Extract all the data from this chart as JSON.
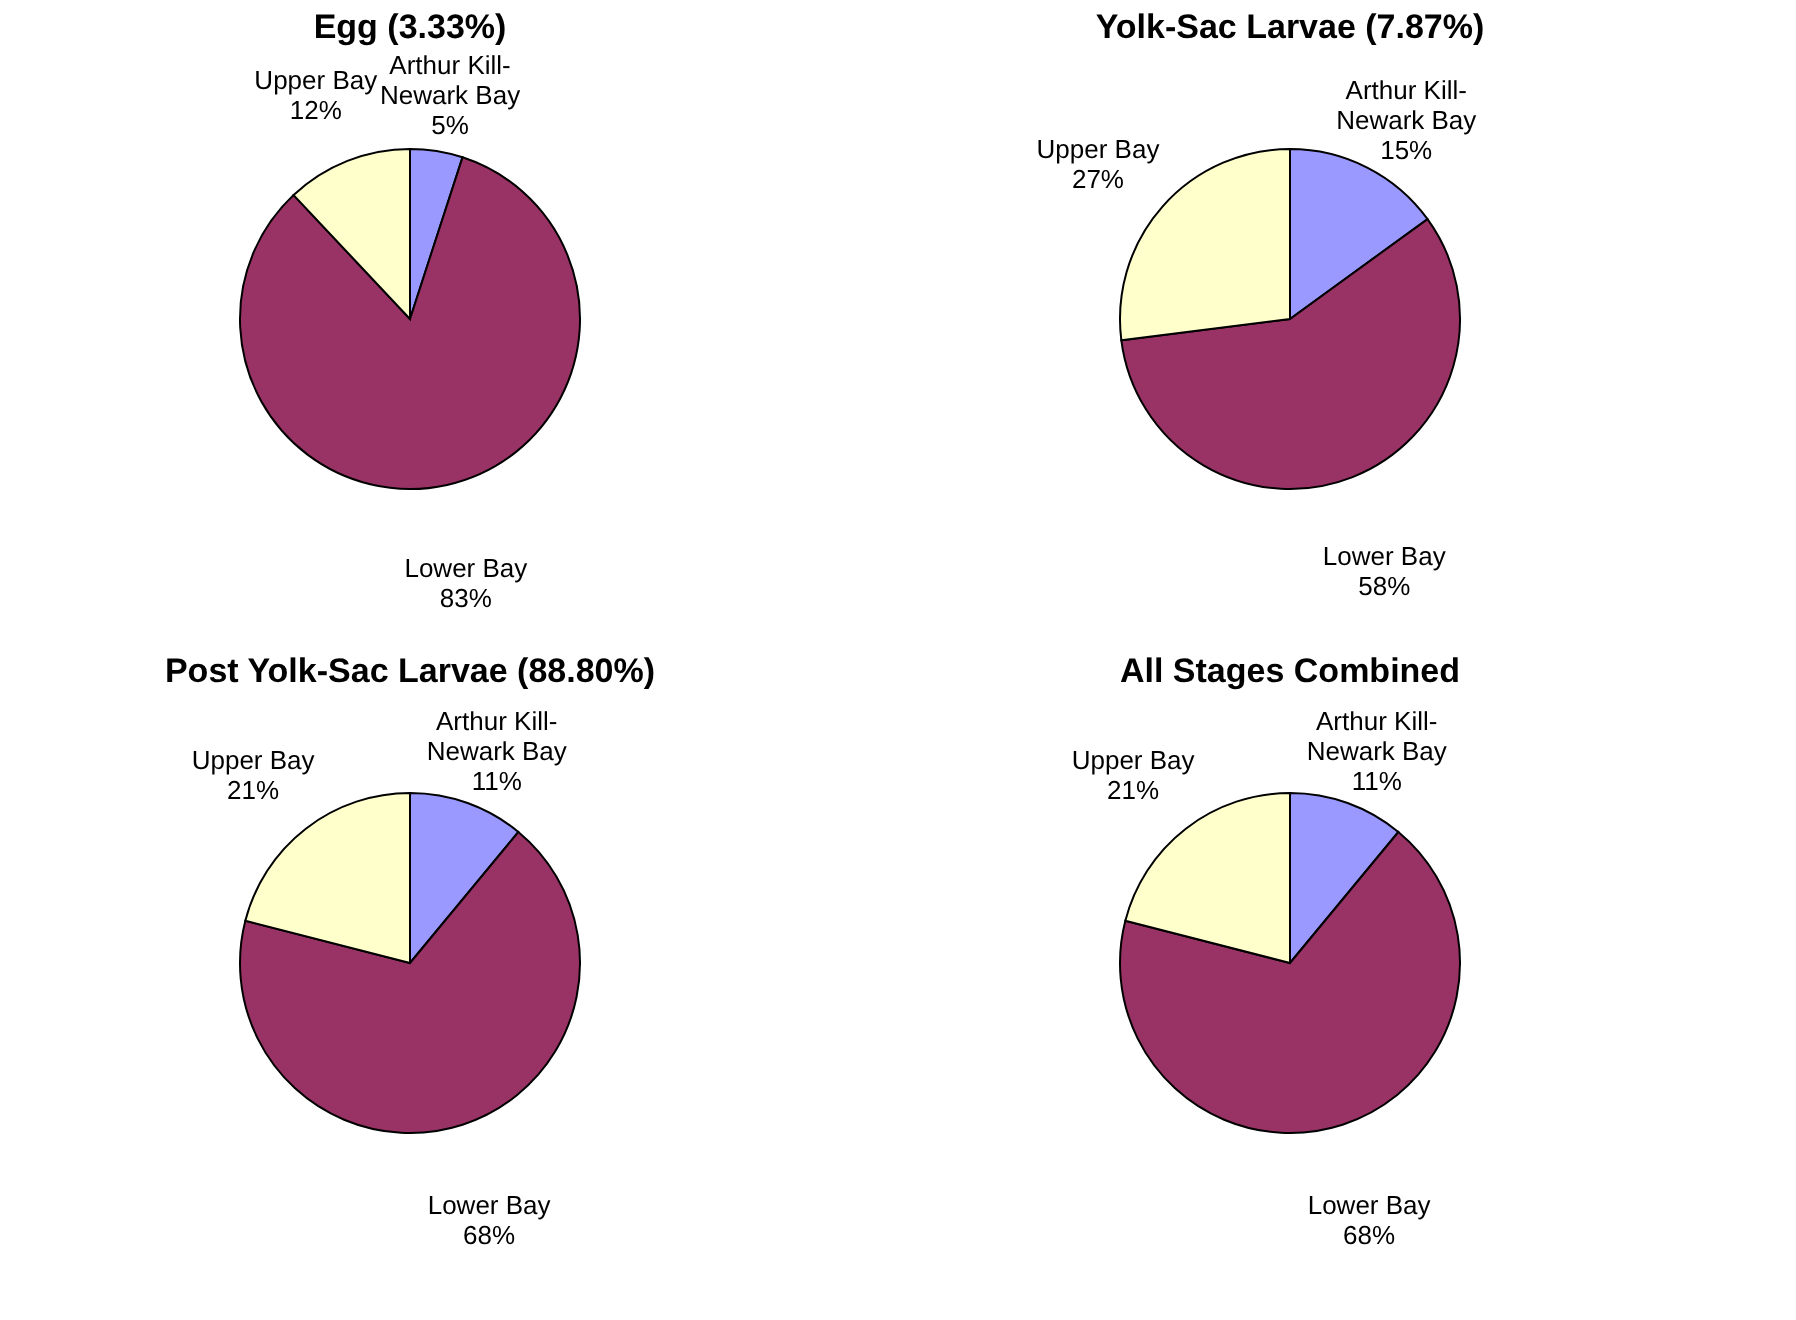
{
  "chart_data": [
    {
      "type": "pie",
      "title": "Egg (3.33%)",
      "categories": [
        "Arthur Kill-Newark Bay",
        "Lower Bay",
        "Upper Bay"
      ],
      "values": [
        5,
        83,
        12
      ],
      "colors": [
        "#9999ff",
        "#993366",
        "#ffffcc"
      ],
      "value_labels": [
        "5%",
        "83%",
        "12%"
      ]
    },
    {
      "type": "pie",
      "title": "Yolk-Sac Larvae (7.87%)",
      "categories": [
        "Arthur Kill-Newark Bay",
        "Lower Bay",
        "Upper Bay"
      ],
      "values": [
        15,
        58,
        27
      ],
      "colors": [
        "#9999ff",
        "#993366",
        "#ffffcc"
      ],
      "value_labels": [
        "15%",
        "58%",
        "27%"
      ]
    },
    {
      "type": "pie",
      "title": "Post Yolk-Sac Larvae (88.80%)",
      "categories": [
        "Arthur Kill-Newark Bay",
        "Lower Bay",
        "Upper Bay"
      ],
      "values": [
        11,
        68,
        21
      ],
      "colors": [
        "#9999ff",
        "#993366",
        "#ffffcc"
      ],
      "value_labels": [
        "11%",
        "68%",
        "21%"
      ]
    },
    {
      "type": "pie",
      "title": "All Stages Combined",
      "categories": [
        "Arthur Kill-Newark Bay",
        "Lower Bay",
        "Upper Bay"
      ],
      "values": [
        11,
        68,
        21
      ],
      "colors": [
        "#9999ff",
        "#993366",
        "#ffffcc"
      ],
      "value_labels": [
        "11%",
        "68%",
        "21%"
      ]
    }
  ]
}
